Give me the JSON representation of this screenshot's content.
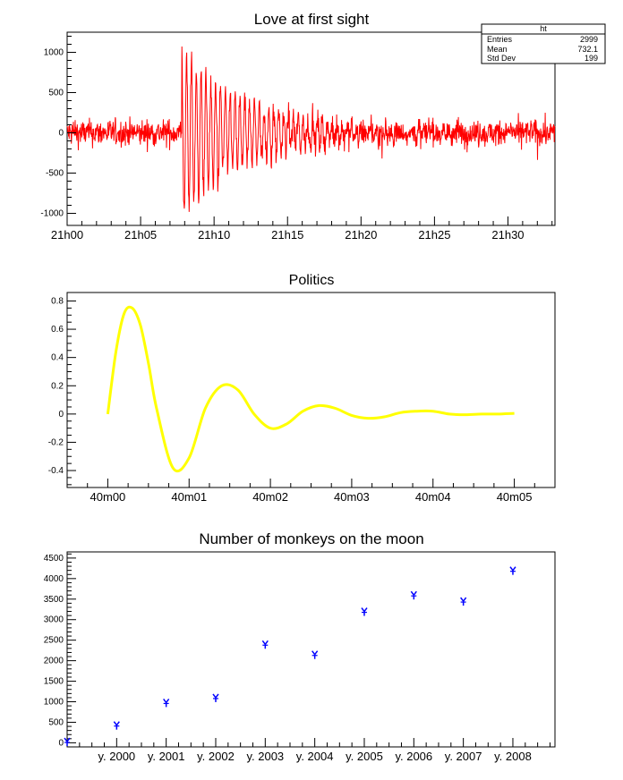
{
  "chart_data": [
    {
      "type": "line",
      "title": "Love at first sight",
      "x_axis": {
        "kind": "time",
        "ticks": [
          "21h00",
          "21h05",
          "21h10",
          "21h15",
          "21h20",
          "21h25",
          "21h30"
        ],
        "range_minutes": [
          0,
          33.2
        ]
      },
      "y_axis": {
        "ticks": [
          -1000,
          -500,
          0,
          500,
          1000
        ],
        "range": [
          -1150,
          1250
        ]
      },
      "series_color": "#ff0000",
      "signal": {
        "noise_amplitude": 150,
        "burst_start_minute": 7.8,
        "burst_peak_amplitude": 1150,
        "burst_decay_minutes": 4.5,
        "oscillation_period_minutes": 0.33
      },
      "stats_box": {
        "title": "ht",
        "rows": [
          {
            "label": "Entries",
            "value": "2999"
          },
          {
            "label": "Mean",
            "value": "732.1"
          },
          {
            "label": "Std Dev",
            "value": "199"
          }
        ]
      }
    },
    {
      "type": "line",
      "title": "Politics",
      "x_axis": {
        "kind": "time",
        "ticks": [
          "40m00",
          "40m01",
          "40m02",
          "40m03",
          "40m04",
          "40m05"
        ],
        "range": [
          -0.5,
          5.5
        ]
      },
      "y_axis": {
        "ticks": [
          -0.4,
          -0.2,
          0,
          0.2,
          0.4,
          0.6,
          0.8
        ],
        "range": [
          -0.52,
          0.86
        ]
      },
      "series_color": "#ffff00",
      "x": [
        0.0,
        0.1,
        0.2,
        0.3,
        0.4,
        0.5,
        0.6,
        0.8,
        1.0,
        1.2,
        1.4,
        1.6,
        1.8,
        2.0,
        2.2,
        2.4,
        2.6,
        2.8,
        3.0,
        3.2,
        3.4,
        3.6,
        3.8,
        4.0,
        4.2,
        4.4,
        4.6,
        4.8,
        5.0
      ],
      "y": [
        0.0,
        0.44,
        0.71,
        0.75,
        0.63,
        0.36,
        0.04,
        -0.38,
        -0.31,
        0.04,
        0.2,
        0.17,
        0.0,
        -0.1,
        -0.07,
        0.02,
        0.06,
        0.04,
        -0.01,
        -0.03,
        -0.02,
        0.01,
        0.02,
        0.02,
        0.0,
        -0.005,
        0.0,
        0.0,
        0.005
      ]
    },
    {
      "type": "scatter",
      "title": "Number of monkeys on the moon",
      "categories": [
        "y. 2000",
        "y. 2001",
        "y. 2002",
        "y. 2003",
        "y. 2004",
        "y. 2005",
        "y. 2006",
        "y. 2007",
        "y. 2008"
      ],
      "x": [
        -1,
        0,
        1,
        2,
        3,
        4,
        5,
        6,
        7,
        8
      ],
      "values": [
        30,
        430,
        980,
        1100,
        2400,
        2150,
        3200,
        3600,
        3450,
        4200
      ],
      "y_axis": {
        "ticks": [
          0,
          500,
          1000,
          1500,
          2000,
          2500,
          3000,
          3500,
          4000,
          4500
        ],
        "range": [
          -100,
          4650
        ]
      },
      "series_color": "#0000ff"
    }
  ]
}
